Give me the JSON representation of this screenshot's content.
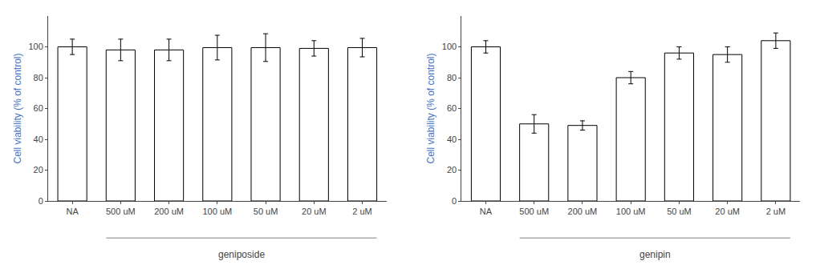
{
  "chart_data": [
    {
      "type": "bar",
      "categories": [
        "NA",
        "500 uM",
        "200 uM",
        "100 uM",
        "50 uM",
        "20 uM",
        "2 uM"
      ],
      "values": [
        100,
        98,
        98,
        99.5,
        99.5,
        99,
        99.5
      ],
      "errors": [
        5,
        7,
        7,
        8,
        9,
        5,
        6
      ],
      "xlabel": "geniposide",
      "ylabel": "Cell viability (% of control)",
      "ylim": [
        0,
        120
      ],
      "yticks": [
        0,
        20,
        40,
        60,
        80,
        100
      ],
      "color": "#ffffff",
      "grid": false
    },
    {
      "type": "bar",
      "categories": [
        "NA",
        "500 uM",
        "200 uM",
        "100 uM",
        "50 uM",
        "20 uM",
        "2 uM"
      ],
      "values": [
        100,
        50,
        49,
        80,
        96,
        95,
        104
      ],
      "errors": [
        4,
        6,
        3,
        4,
        4,
        5,
        5
      ],
      "xlabel": "genipin",
      "ylabel": "Cell viability (% of control)",
      "ylim": [
        0,
        120
      ],
      "yticks": [
        0,
        20,
        40,
        60,
        80,
        100
      ],
      "color": "#ffffff",
      "grid": false
    }
  ]
}
